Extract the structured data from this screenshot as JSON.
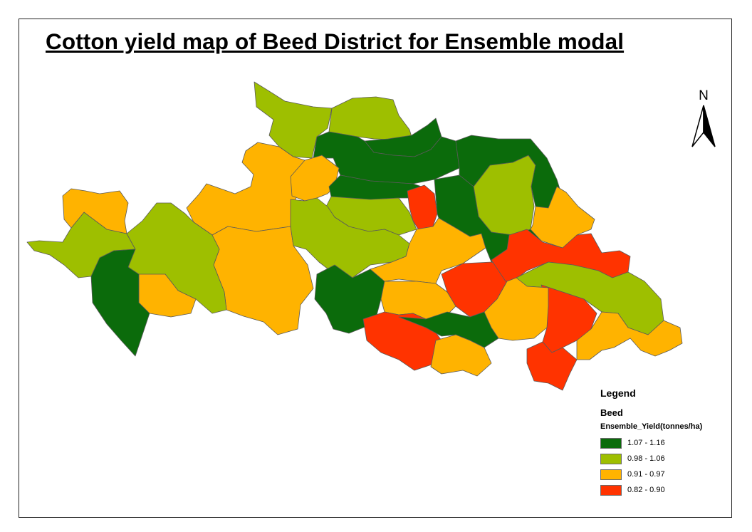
{
  "title": "Cotton yield map of Beed District for Ensemble  modal",
  "north_arrow": {
    "label": "N",
    "icon": "north-arrow-icon"
  },
  "legend": {
    "title": "Legend",
    "layer": "Beed",
    "field": "Ensemble_Yield(tonnes/ha)",
    "classes": [
      {
        "label": "1.07 - 1.16",
        "color": "#0b6b0b"
      },
      {
        "label": "0.98 - 1.06",
        "color": "#9ebf00"
      },
      {
        "label": "0.91 - 0.97",
        "color": "#ffb300"
      },
      {
        "label": "0.82 - 0.90",
        "color": "#ff3300"
      }
    ]
  },
  "map_data": {
    "region": "Beed",
    "zones": [
      {
        "class": 2
      },
      {
        "class": 2
      },
      {
        "class": 1
      },
      {
        "class": 1
      },
      {
        "class": 0
      },
      {
        "class": 0
      },
      {
        "class": 2
      },
      {
        "class": 0
      },
      {
        "class": 1
      },
      {
        "class": 1
      },
      {
        "class": 3
      },
      {
        "class": 0
      },
      {
        "class": 2
      },
      {
        "class": 3
      },
      {
        "class": 2
      },
      {
        "class": 1
      },
      {
        "class": 0
      },
      {
        "class": 0
      },
      {
        "class": 3
      },
      {
        "class": 1
      },
      {
        "class": 2
      },
      {
        "class": 3
      },
      {
        "class": 1
      },
      {
        "class": 2
      },
      {
        "class": 3
      },
      {
        "class": 0
      },
      {
        "class": 1
      },
      {
        "class": 2
      },
      {
        "class": 0
      },
      {
        "class": 2
      },
      {
        "class": 3
      },
      {
        "class": 2
      },
      {
        "class": 2
      }
    ]
  }
}
